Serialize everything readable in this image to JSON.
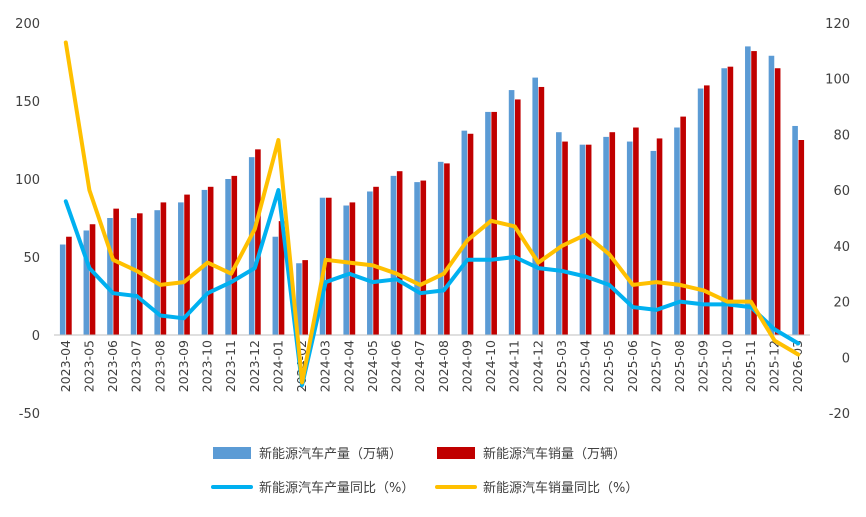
{
  "chart_data": {
    "type": "bar",
    "categories": [
      "2023-04",
      "2023-05",
      "2023-06",
      "2023-07",
      "2023-08",
      "2023-09",
      "2023-10",
      "2023-11",
      "2023-12",
      "2024-01",
      "2024-02",
      "2024-03",
      "2024-04",
      "2024-05",
      "2024-06",
      "2024-07",
      "2024-08",
      "2024-09",
      "2024-10",
      "2024-11",
      "2024-12",
      "2025-03",
      "2025-04",
      "2025-05",
      "2025-06",
      "2025-07",
      "2025-08",
      "2025-09",
      "2025-10",
      "2025-11",
      "2025-12",
      "2026-03"
    ],
    "y_left": {
      "min": -50,
      "max": 200,
      "step": 50,
      "ticks": [
        "-50",
        "0",
        "50",
        "100",
        "150",
        "200"
      ]
    },
    "y_right": {
      "min": -20,
      "max": 120,
      "step": 20,
      "ticks": [
        "-20",
        "0",
        "20",
        "40",
        "60",
        "80",
        "100",
        "120"
      ]
    },
    "grid": false,
    "legend_position": "bottom",
    "series": [
      {
        "name": "新能源汽车产量（万辆）",
        "type": "bar",
        "axis": "left",
        "color": "#5B9BD5",
        "values": [
          58,
          67,
          75,
          75,
          80,
          85,
          93,
          100,
          114,
          63,
          46,
          88,
          83,
          92,
          102,
          98,
          111,
          131,
          143,
          157,
          165,
          130,
          122,
          127,
          124,
          118,
          133,
          158,
          171,
          185,
          179,
          134
        ]
      },
      {
        "name": "新能源汽车销量（万辆）",
        "type": "bar",
        "axis": "left",
        "color": "#C00000",
        "values": [
          63,
          71,
          81,
          78,
          85,
          90,
          95,
          102,
          119,
          73,
          48,
          88,
          85,
          95,
          105,
          99,
          110,
          129,
          143,
          151,
          159,
          124,
          122,
          130,
          133,
          126,
          140,
          160,
          172,
          182,
          171,
          125
        ]
      },
      {
        "name": "新能源汽车产量同比（%）",
        "type": "line",
        "axis": "right",
        "color": "#00B0F0",
        "values": [
          56,
          32,
          23,
          22,
          15,
          14,
          23,
          27,
          32,
          60,
          -10,
          27,
          30,
          27,
          28,
          23,
          24,
          35,
          35,
          36,
          32,
          31,
          29,
          26,
          18,
          17,
          20,
          19,
          19,
          18,
          10,
          5
        ]
      },
      {
        "name": "新能源汽车销量同比（%）",
        "type": "line",
        "axis": "right",
        "color": "#FFC000",
        "values": [
          113,
          60,
          35,
          31,
          26,
          27,
          34,
          30,
          46,
          78,
          -9,
          35,
          34,
          33,
          30,
          26,
          30,
          42,
          49,
          47,
          34,
          40,
          44,
          37,
          26,
          27,
          26,
          24,
          20,
          20,
          6,
          1
        ]
      }
    ]
  }
}
